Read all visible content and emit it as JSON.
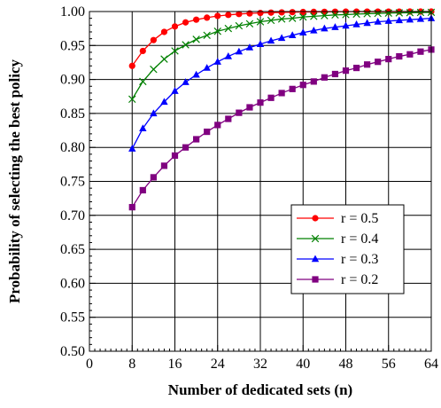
{
  "chart_data": {
    "type": "line",
    "xlabel": "Number of dedicated sets (n)",
    "ylabel": "Probability of selecting the best policy",
    "xlim": [
      0,
      64
    ],
    "ylim": [
      0.5,
      1.0
    ],
    "x_ticks": [
      0,
      8,
      16,
      24,
      32,
      40,
      48,
      56,
      64
    ],
    "x_tick_labels": [
      "0",
      "8",
      "16",
      "24",
      "32",
      "40",
      "48",
      "56",
      "64"
    ],
    "y_ticks": [
      0.5,
      0.55,
      0.6,
      0.65,
      0.7,
      0.75,
      0.8,
      0.85,
      0.9,
      0.95,
      1.0
    ],
    "y_tick_labels": [
      "0.50",
      "0.55",
      "0.60",
      "0.65",
      "0.70",
      "0.75",
      "0.80",
      "0.85",
      "0.90",
      "0.95",
      "1.00"
    ],
    "grid": true,
    "legend_position": "bottom-right",
    "x": [
      8,
      10,
      12,
      14,
      16,
      18,
      20,
      22,
      24,
      26,
      28,
      30,
      32,
      34,
      36,
      38,
      40,
      42,
      44,
      46,
      48,
      50,
      52,
      54,
      56,
      58,
      60,
      62,
      64
    ],
    "series": [
      {
        "name": "r = 0.5",
        "color": "#ff0000",
        "marker": "circle",
        "values": [
          0.92,
          0.942,
          0.958,
          0.97,
          0.978,
          0.984,
          0.988,
          0.991,
          0.9935,
          0.995,
          0.9963,
          0.9972,
          0.9979,
          0.9984,
          0.9988,
          0.9991,
          0.9993,
          0.9995,
          0.9996,
          0.9997,
          0.9998,
          0.9998,
          0.9999,
          0.9999,
          0.9999,
          0.9999,
          1.0,
          1.0,
          1.0
        ]
      },
      {
        "name": "r = 0.4",
        "color": "#008000",
        "marker": "x",
        "values": [
          0.871,
          0.897,
          0.915,
          0.93,
          0.942,
          0.951,
          0.959,
          0.965,
          0.971,
          0.975,
          0.979,
          0.982,
          0.985,
          0.987,
          0.989,
          0.99,
          0.992,
          0.993,
          0.994,
          0.995,
          0.9955,
          0.9962,
          0.9968,
          0.9973,
          0.9977,
          0.998,
          0.9983,
          0.9986,
          0.9988
        ]
      },
      {
        "name": "r = 0.3",
        "color": "#0000ff",
        "marker": "triangle",
        "values": [
          0.798,
          0.828,
          0.85,
          0.867,
          0.883,
          0.896,
          0.907,
          0.917,
          0.926,
          0.934,
          0.941,
          0.947,
          0.952,
          0.957,
          0.961,
          0.965,
          0.969,
          0.972,
          0.975,
          0.977,
          0.979,
          0.981,
          0.983,
          0.985,
          0.986,
          0.987,
          0.988,
          0.989,
          0.99
        ]
      },
      {
        "name": "r = 0.2",
        "color": "#800080",
        "marker": "square",
        "values": [
          0.712,
          0.737,
          0.756,
          0.773,
          0.788,
          0.8,
          0.812,
          0.823,
          0.833,
          0.842,
          0.851,
          0.859,
          0.866,
          0.873,
          0.88,
          0.886,
          0.892,
          0.897,
          0.903,
          0.908,
          0.913,
          0.917,
          0.922,
          0.926,
          0.93,
          0.934,
          0.937,
          0.941,
          0.944
        ]
      }
    ]
  }
}
